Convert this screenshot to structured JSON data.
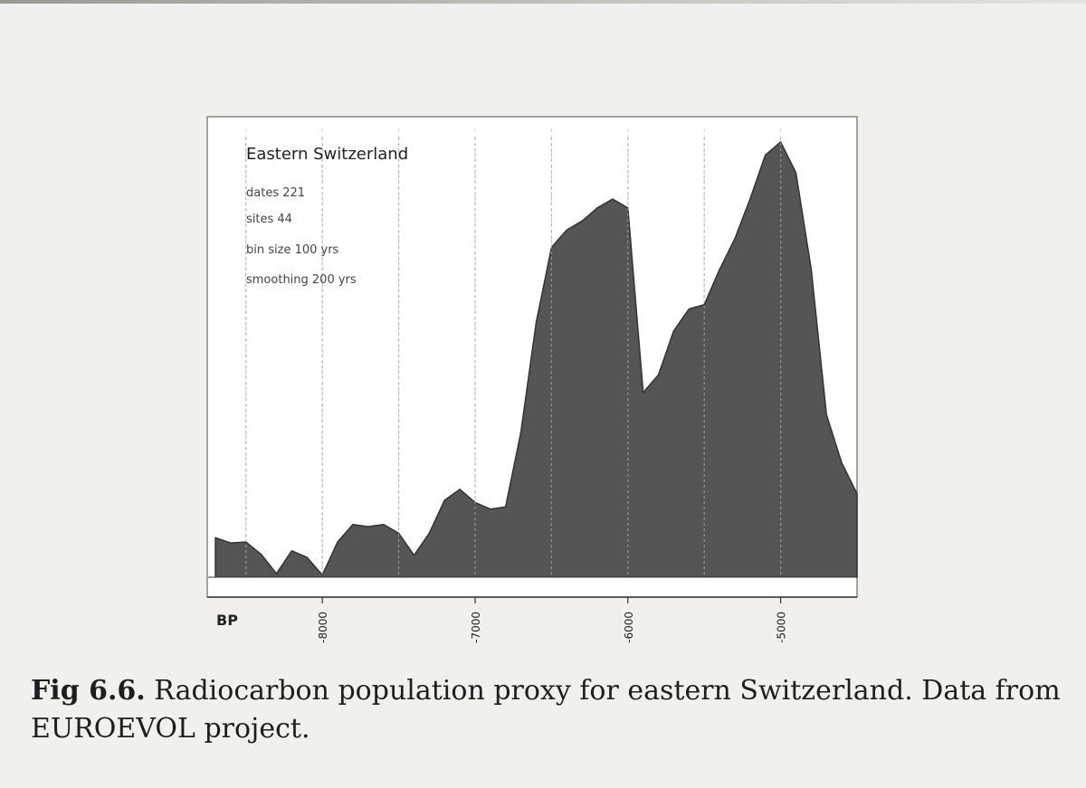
{
  "chart_data": {
    "type": "area",
    "title": "Eastern Switzerland",
    "info": [
      "dates 221",
      "sites 44",
      "bin size 100 yrs",
      "smoothing 200 yrs"
    ],
    "xlabel": "BP",
    "xlim": [
      -8700,
      -4500
    ],
    "ylim": [
      0,
      1
    ],
    "x_ticks": [
      -8000,
      -7000,
      -6000,
      -5000
    ],
    "x_tick_labels": [
      "-8000",
      "-7000",
      "-6000",
      "-5000"
    ],
    "grid": "vertical dashed lines every 500 years",
    "series": [
      {
        "color": "#555555",
        "x": [
          -8700,
          -8600,
          -8500,
          -8400,
          -8300,
          -8200,
          -8100,
          -8000,
          -7900,
          -7800,
          -7700,
          -7600,
          -7500,
          -7400,
          -7300,
          -7200,
          -7100,
          -7000,
          -6900,
          -6800,
          -6700,
          -6600,
          -6500,
          -6450,
          -6400,
          -6300,
          -6200,
          -6100,
          -6000,
          -5900,
          -5800,
          -5700,
          -5600,
          -5500,
          -5400,
          -5300,
          -5200,
          -5100,
          -5000,
          -4900,
          -4800,
          -4700,
          -4600,
          -4500
        ],
        "values": [
          0.09,
          0.078,
          0.08,
          0.052,
          0.008,
          0.06,
          0.045,
          0.005,
          0.08,
          0.12,
          0.115,
          0.12,
          0.1,
          0.05,
          0.1,
          0.175,
          0.2,
          0.17,
          0.155,
          0.16,
          0.33,
          0.58,
          0.75,
          0.77,
          0.79,
          0.81,
          0.84,
          0.86,
          0.84,
          0.42,
          0.46,
          0.56,
          0.61,
          0.62,
          0.7,
          0.77,
          0.86,
          0.96,
          0.99,
          0.92,
          0.7,
          0.37,
          0.26,
          0.19
        ]
      }
    ],
    "caption": {
      "label": "Fig 6.6.",
      "text": " Radiocarbon population proxy for eastern Switzerland. Data from EUROEVOL project."
    }
  }
}
